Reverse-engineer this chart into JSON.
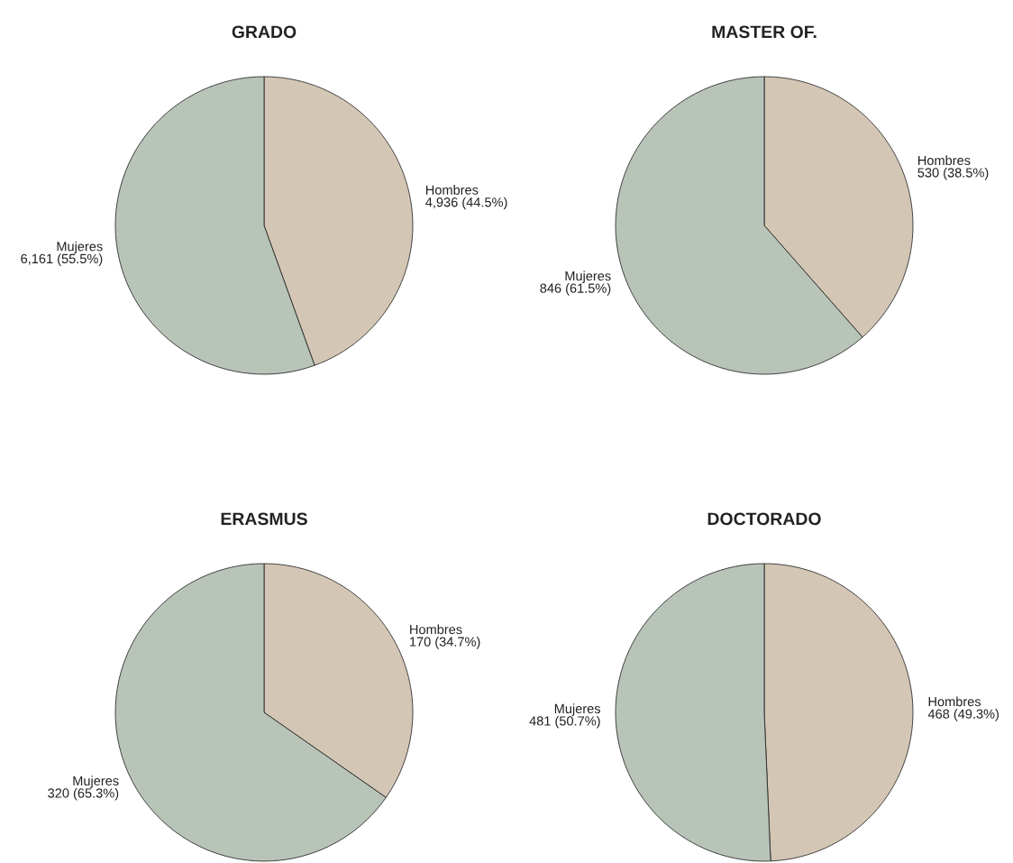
{
  "chart_data": [
    {
      "type": "pie",
      "title": "GRADO",
      "categories": [
        "Hombres",
        "Mujeres"
      ],
      "values": [
        4936,
        6161
      ],
      "value_labels": [
        "4,936 (44.5%)",
        "6,161 (55.5%)"
      ],
      "colors": [
        "#d3c6b4",
        "#b8c4b8"
      ]
    },
    {
      "type": "pie",
      "title": "MASTER OF.",
      "categories": [
        "Hombres",
        "Mujeres"
      ],
      "values": [
        530,
        846
      ],
      "value_labels": [
        "530 (38.5%)",
        "846 (61.5%)"
      ],
      "colors": [
        "#d3c6b4",
        "#b8c4b8"
      ]
    },
    {
      "type": "pie",
      "title": "ERASMUS",
      "categories": [
        "Hombres",
        "Mujeres"
      ],
      "values": [
        170,
        320
      ],
      "value_labels": [
        "170 (34.7%)",
        "320 (65.3%)"
      ],
      "colors": [
        "#d3c6b4",
        "#b8c4b8"
      ]
    },
    {
      "type": "pie",
      "title": "DOCTORADO",
      "categories": [
        "Hombres",
        "Mujeres"
      ],
      "values": [
        468,
        481
      ],
      "value_labels": [
        "468 (49.3%)",
        "481 (50.7%)"
      ],
      "colors": [
        "#d3c6b4",
        "#b8c4b8"
      ]
    }
  ]
}
